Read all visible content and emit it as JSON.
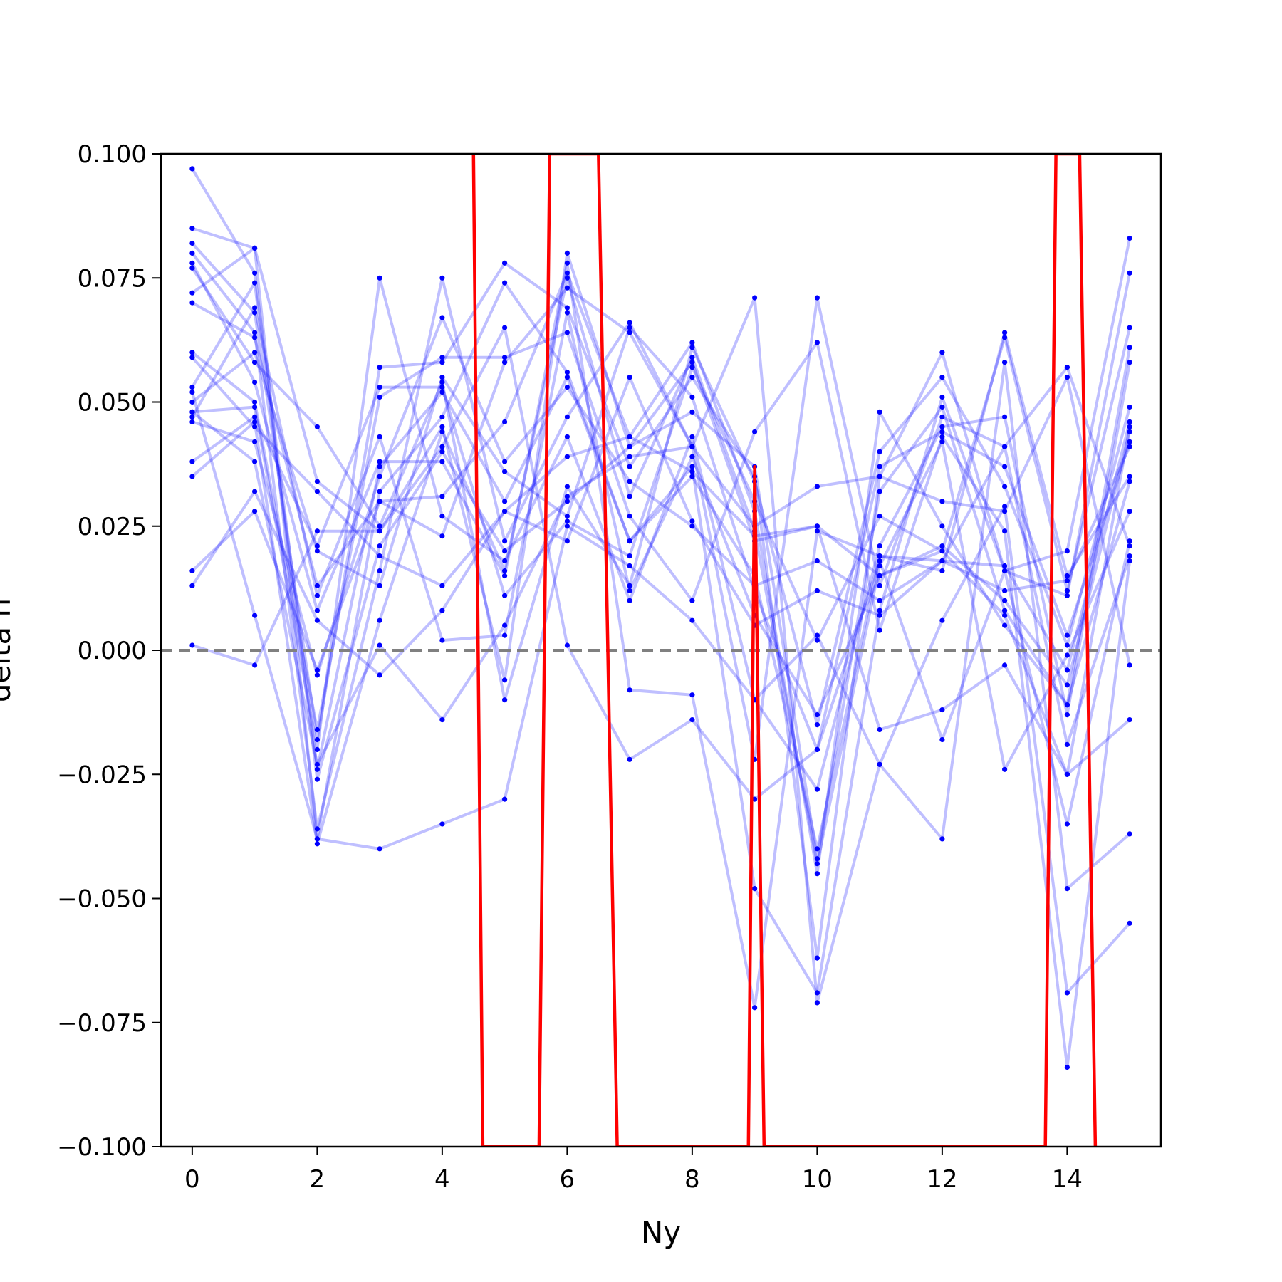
{
  "chart_data": {
    "type": "line",
    "title": "",
    "xlabel": "Ny",
    "ylabel": "delta h",
    "xlim": [
      -0.5,
      15.5
    ],
    "ylim": [
      -0.1,
      0.1
    ],
    "x_ticks": [
      0,
      2,
      4,
      6,
      8,
      10,
      12,
      14
    ],
    "x_tick_labels": [
      "0",
      "2",
      "4",
      "6",
      "8",
      "10",
      "12",
      "14"
    ],
    "y_ticks": [
      0.1,
      0.075,
      0.05,
      0.025,
      0.0,
      -0.025,
      -0.05,
      -0.075,
      -0.1
    ],
    "y_tick_labels": [
      "0.100",
      "0.075",
      "0.050",
      "0.025",
      "0.000",
      "−0.025",
      "−0.050",
      "−0.075",
      "−0.100"
    ],
    "grid": false,
    "reference_line": {
      "y": 0.0,
      "style": "dashed",
      "color": "#808080"
    },
    "colors": {
      "series": "#0000ff",
      "highlight": "#ff0000",
      "reference": "#808080"
    },
    "x": [
      0,
      1,
      2,
      3,
      4,
      5,
      6,
      7,
      8,
      9,
      10,
      11,
      12,
      13,
      14,
      15
    ],
    "series": [
      {
        "values": [
          0.097,
          0.076,
          -0.024,
          0.037,
          0.052,
          0.03,
          0.055,
          0.022,
          0.035,
          0.015,
          -0.04,
          0.019,
          0.018,
          0.012,
          0.014,
          0.041
        ]
      },
      {
        "values": [
          0.085,
          0.081,
          0.034,
          0.024,
          0.045,
          -0.006,
          0.08,
          0.041,
          0.058,
          0.022,
          0.025,
          0.015,
          0.021,
          0.01,
          -0.007,
          0.044
        ]
      },
      {
        "values": [
          0.082,
          0.068,
          -0.018,
          0.057,
          0.058,
          0.078,
          0.069,
          0.037,
          0.055,
          0.035,
          -0.062,
          0.035,
          0.06,
          0.016,
          0.011,
          0.076
        ]
      },
      {
        "values": [
          0.08,
          0.064,
          -0.036,
          0.016,
          0.075,
          0.022,
          0.047,
          0.066,
          0.041,
          -0.022,
          0.071,
          0.013,
          0.047,
          0.041,
          0.057,
          0.021
        ]
      },
      {
        "values": [
          0.078,
          0.054,
          0.008,
          0.038,
          0.038,
          0.015,
          0.078,
          -0.008,
          -0.009,
          -0.072,
          0.024,
          0.019,
          0.016,
          0.064,
          0.015,
          0.035
        ]
      },
      {
        "values": [
          0.077,
          0.058,
          0.045,
          0.025,
          0.054,
          -0.01,
          0.033,
          0.013,
          0.061,
          0.034,
          -0.015,
          0.04,
          0.055,
          0.033,
          0.001,
          0.049
        ]
      },
      {
        "values": [
          0.072,
          0.081,
          -0.038,
          0.032,
          0.047,
          0.074,
          0.056,
          0.022,
          0.037,
          -0.048,
          -0.069,
          0.008,
          0.051,
          0.016,
          0.02,
          0.083
        ]
      },
      {
        "values": [
          0.07,
          0.063,
          0.013,
          0.03,
          0.031,
          0.046,
          0.076,
          0.043,
          0.062,
          0.028,
          -0.045,
          0.048,
          0.025,
          0.005,
          -0.011,
          0.061
        ]
      },
      {
        "values": [
          0.06,
          0.05,
          -0.016,
          0.051,
          0.059,
          0.059,
          0.064,
          0.027,
          0.01,
          0.044,
          0.062,
          0.004,
          0.043,
          0.024,
          -0.084,
          0.018
        ]
      },
      {
        "values": [
          0.059,
          0.045,
          0.032,
          0.019,
          0.013,
          0.028,
          0.022,
          0.055,
          0.026,
          0.005,
          0.012,
          0.007,
          0.018,
          0.041,
          -0.019,
          0.019
        ]
      },
      {
        "values": [
          0.053,
          0.074,
          -0.026,
          0.021,
          0.04,
          0.02,
          0.03,
          0.041,
          0.048,
          0.037,
          -0.042,
          0.032,
          0.049,
          0.008,
          -0.011,
          0.034
        ]
      },
      {
        "values": [
          0.05,
          0.06,
          0.02,
          0.013,
          0.055,
          0.036,
          0.027,
          0.065,
          0.051,
          0.012,
          -0.02,
          0.037,
          0.044,
          0.037,
          0.003,
          0.042
        ]
      },
      {
        "values": [
          0.048,
          0.049,
          -0.02,
          0.075,
          0.027,
          0.018,
          0.043,
          0.01,
          0.043,
          -0.01,
          -0.028,
          0.021,
          0.045,
          0.047,
          -0.013,
          0.058
        ]
      },
      {
        "values": [
          0.047,
          0.069,
          0.011,
          0.043,
          0.002,
          0.003,
          0.068,
          0.012,
          0.039,
          0.007,
          -0.013,
          0.015,
          0.02,
          0.063,
          0.012,
          0.065
        ]
      },
      {
        "values": [
          0.046,
          0.042,
          -0.005,
          0.035,
          0.067,
          0.038,
          0.053,
          0.034,
          0.025,
          0.013,
          0.018,
          0.01,
          0.018,
          0.017,
          -0.004,
          0.046
        ]
      },
      {
        "values": [
          0.038,
          0.047,
          0.021,
          0.053,
          0.053,
          0.011,
          0.026,
          0.019,
          0.057,
          0.03,
          0.002,
          0.027,
          0.02,
          0.007,
          -0.025,
          0.045
        ]
      },
      {
        "values": [
          0.035,
          0.046,
          -0.039,
          0.006,
          0.044,
          0.016,
          0.075,
          0.031,
          0.059,
          0.024,
          -0.043,
          0.017,
          0.042,
          -0.024,
          -0.001,
          0.028
        ]
      },
      {
        "values": [
          0.016,
          0.028,
          -0.004,
          0.03,
          0.023,
          0.058,
          0.073,
          0.064,
          0.041,
          0.025,
          0.033,
          0.035,
          0.03,
          0.028,
          0.055,
          -0.003
        ]
      },
      {
        "values": [
          0.013,
          0.032,
          0.006,
          -0.005,
          0.008,
          0.028,
          0.039,
          0.043,
          0.036,
          0.023,
          0.025,
          -0.016,
          -0.012,
          -0.003,
          -0.025,
          -0.014
        ]
      },
      {
        "values": [
          0.001,
          -0.003,
          0.024,
          0.024,
          0.041,
          0.065,
          0.001,
          -0.022,
          -0.014,
          -0.03,
          -0.02,
          0.018,
          -0.018,
          0.016,
          -0.035,
          0.022
        ]
      },
      {
        "values": [
          0.052,
          0.007,
          -0.038,
          -0.04,
          -0.035,
          -0.03,
          0.025,
          0.017,
          0.006,
          -0.01,
          0.003,
          -0.023,
          0.006,
          0.029,
          -0.069,
          -0.055
        ]
      },
      {
        "values": [
          0.048,
          0.038,
          -0.023,
          0.001,
          -0.014,
          0.005,
          0.031,
          0.039,
          0.041,
          0.071,
          -0.071,
          -0.023,
          -0.038,
          0.058,
          -0.048,
          -0.037
        ]
      }
    ],
    "highlight_series": {
      "color": "#ff0000",
      "x": [
        4.5,
        4.65,
        5.55,
        5.72,
        6.5,
        6.8,
        8.9,
        9.0,
        9.15,
        13.65,
        13.82,
        14.2,
        14.45
      ],
      "values": [
        0.1,
        -0.1,
        -0.1,
        0.1,
        0.1,
        -0.1,
        -0.1,
        0.037,
        -0.1,
        -0.1,
        0.1,
        0.1,
        -0.1
      ]
    }
  }
}
